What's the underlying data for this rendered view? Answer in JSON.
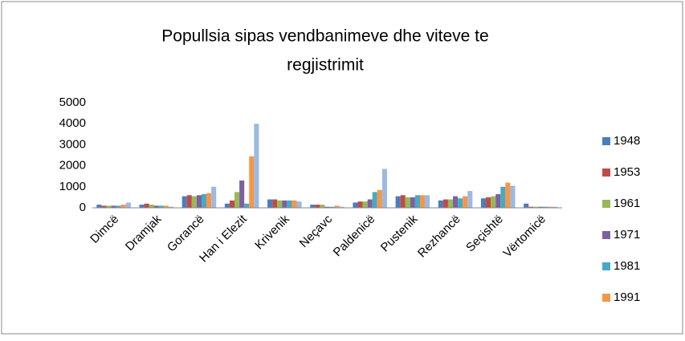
{
  "chart_data": {
    "type": "bar",
    "title": [
      "Popullsia sipas vendbanimeve dhe viteve te",
      "regjistrimit"
    ],
    "categories": [
      "Dimcë",
      "Dramjak",
      "Gorancë",
      "Han i Elezit",
      "Krivenik",
      "Neçavc",
      "Paldenicë",
      "Pustenik",
      "Rezhancë",
      "Seçishtë",
      "Vërtomicë"
    ],
    "series": [
      {
        "name": "1948",
        "color": "#4a7ebb",
        "values": [
          150,
          150,
          550,
          200,
          400,
          150,
          250,
          550,
          350,
          450,
          200
        ]
      },
      {
        "name": "1953",
        "color": "#be4b48",
        "values": [
          100,
          200,
          600,
          350,
          400,
          150,
          300,
          600,
          400,
          500,
          50
        ]
      },
      {
        "name": "1961",
        "color": "#98b954",
        "values": [
          100,
          150,
          550,
          750,
          350,
          150,
          300,
          500,
          400,
          550,
          50
        ]
      },
      {
        "name": "1971",
        "color": "#7d60a0",
        "values": [
          100,
          100,
          600,
          1300,
          350,
          50,
          400,
          500,
          550,
          650,
          50
        ]
      },
      {
        "name": "1981",
        "color": "#46aac5",
        "values": [
          100,
          100,
          650,
          200,
          350,
          50,
          750,
          600,
          450,
          1000,
          50
        ]
      },
      {
        "name": "1991",
        "color": "#f79646",
        "values": [
          150,
          100,
          700,
          2450,
          350,
          100,
          850,
          600,
          550,
          1200,
          50
        ]
      },
      {
        "color": "#9db9e0",
        "values": [
          250,
          50,
          1000,
          4000,
          300,
          50,
          1850,
          600,
          800,
          1050,
          50
        ]
      }
    ],
    "ylim": [
      0,
      5000
    ],
    "yticks": [
      0,
      1000,
      2000,
      3000,
      4000,
      5000
    ],
    "grid": false
  }
}
